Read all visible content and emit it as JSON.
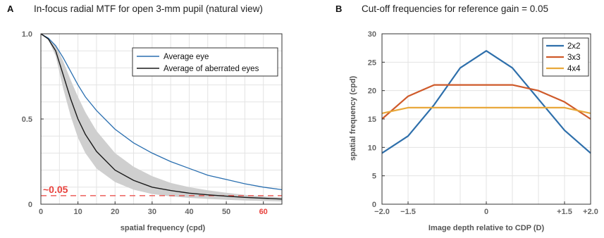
{
  "chart_data": [
    {
      "panel": "A",
      "type": "line",
      "title": "In-focus radial MTF for open 3-mm pupil (natural view)",
      "xlabel": "spatial frequency (cpd)",
      "ylabel": "",
      "xlim": [
        0,
        65
      ],
      "ylim": [
        0,
        1
      ],
      "xticks": [
        "0",
        "10",
        "20",
        "30",
        "40",
        "50",
        "60"
      ],
      "yticks": [
        "0",
        "0.5",
        "1.0"
      ],
      "highlight_tick": "60",
      "highlight_color": "#e8413c",
      "grid": true,
      "legend_position": "top-right",
      "series": [
        {
          "name": "Average eye",
          "color": "#2a6fb0",
          "x": [
            0,
            2,
            4,
            6,
            8,
            10,
            12,
            15,
            20,
            25,
            30,
            35,
            40,
            45,
            50,
            55,
            60,
            65
          ],
          "y": [
            1.0,
            0.975,
            0.93,
            0.86,
            0.78,
            0.7,
            0.63,
            0.55,
            0.44,
            0.36,
            0.3,
            0.25,
            0.21,
            0.17,
            0.145,
            0.12,
            0.1,
            0.085
          ]
        },
        {
          "name": "Average of aberrated eyes",
          "color": "#1a1a1a",
          "x": [
            0,
            2,
            4,
            6,
            8,
            10,
            12,
            15,
            20,
            25,
            30,
            35,
            40,
            45,
            50,
            55,
            60,
            65
          ],
          "y": [
            1.0,
            0.97,
            0.9,
            0.76,
            0.62,
            0.5,
            0.41,
            0.31,
            0.2,
            0.14,
            0.1,
            0.08,
            0.065,
            0.055,
            0.047,
            0.04,
            0.035,
            0.03
          ]
        }
      ],
      "band": {
        "x": [
          0,
          2,
          4,
          6,
          8,
          10,
          12,
          15,
          20,
          25,
          30,
          35,
          40,
          45,
          50,
          55,
          60,
          65
        ],
        "upper": [
          1.0,
          0.975,
          0.93,
          0.84,
          0.73,
          0.63,
          0.54,
          0.43,
          0.3,
          0.22,
          0.165,
          0.125,
          0.1,
          0.082,
          0.067,
          0.055,
          0.046,
          0.04
        ],
        "lower": [
          1.0,
          0.965,
          0.87,
          0.68,
          0.52,
          0.39,
          0.3,
          0.21,
          0.13,
          0.085,
          0.06,
          0.046,
          0.037,
          0.031,
          0.026,
          0.022,
          0.019,
          0.016
        ],
        "color": "#cfcfcf"
      },
      "reference_line": {
        "y": 0.05,
        "label": "~0.05",
        "color": "#e8413c"
      }
    },
    {
      "panel": "B",
      "type": "line",
      "title": "Cut-off frequencies for reference gain = 0.05",
      "xlabel": "Image depth relative to CDP (D)",
      "ylabel": "spatial frequency (cpd)",
      "xlim": [
        -2.0,
        2.0
      ],
      "ylim": [
        0,
        30
      ],
      "xtick_values": [
        -2.0,
        -1.5,
        0,
        1.5,
        2.0
      ],
      "xticks": [
        "−2.0",
        "−1.5",
        "0",
        "+1.5",
        "+2.0"
      ],
      "yticks": [
        "0",
        "5",
        "10",
        "15",
        "20",
        "25",
        "30"
      ],
      "grid": true,
      "legend_position": "top-right",
      "x": [
        -2.0,
        -1.5,
        -1.0,
        -0.5,
        0,
        0.5,
        1.0,
        1.5,
        2.0
      ],
      "series": [
        {
          "name": "2x2",
          "color": "#2e6fab",
          "values": [
            9,
            12,
            17.5,
            24,
            27,
            24,
            18.5,
            13,
            9
          ]
        },
        {
          "name": "3x3",
          "color": "#cf5a2a",
          "values": [
            15,
            19,
            21,
            21,
            21,
            21,
            20,
            18,
            15
          ]
        },
        {
          "name": "4x4",
          "color": "#e8a83a",
          "values": [
            16,
            17,
            17,
            17,
            17,
            17,
            17,
            17,
            16
          ]
        }
      ]
    }
  ]
}
